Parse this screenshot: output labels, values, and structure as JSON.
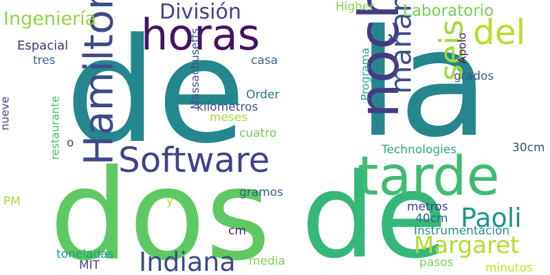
{
  "words": [
    {
      "text": "de",
      "color": "#23878d",
      "rotate": false
    },
    {
      "text": "la",
      "color": "#25868e",
      "rotate": false
    },
    {
      "text": "dos",
      "color": "#5ec962",
      "rotate": false
    },
    {
      "text": "de",
      "color": "#35b779",
      "rotate": false
    },
    {
      "text": "noche",
      "color": "#443b84",
      "rotate": true
    },
    {
      "text": "tarde",
      "color": "#3fbc73",
      "rotate": false
    },
    {
      "text": "horas",
      "color": "#471164",
      "rotate": false
    },
    {
      "text": "Hamilton",
      "color": "#3e4a89",
      "rotate": true
    },
    {
      "text": "Software",
      "color": "#404387",
      "rotate": false
    },
    {
      "text": "mañana",
      "color": "#3c4f8a",
      "rotate": true
    },
    {
      "text": "del",
      "color": "#b5de2b",
      "rotate": false
    },
    {
      "text": "seis",
      "color": "#a2da37",
      "rotate": true
    },
    {
      "text": "Indiana",
      "color": "#3e4989",
      "rotate": false
    },
    {
      "text": "Paoli",
      "color": "#1f958b",
      "rotate": false
    },
    {
      "text": "Margaret",
      "color": "#b2dd2d",
      "rotate": false
    },
    {
      "text": "División",
      "color": "#414287",
      "rotate": false
    },
    {
      "text": "Ingeniería",
      "color": "#8ed645",
      "rotate": false
    },
    {
      "text": "Laboratorio",
      "color": "#75d054",
      "rotate": false
    },
    {
      "text": "Higher",
      "color": "#86d549",
      "rotate": false
    },
    {
      "text": "Espacial",
      "color": "#46307e",
      "rotate": false
    },
    {
      "text": "tres",
      "color": "#34618d",
      "rotate": false
    },
    {
      "text": "casa",
      "color": "#34618d",
      "rotate": false
    },
    {
      "text": "Massachusetts",
      "color": "#3b528b",
      "rotate": true
    },
    {
      "text": "Order",
      "color": "#2c728e",
      "rotate": false
    },
    {
      "text": "kilometros",
      "color": "#3b528b",
      "rotate": false
    },
    {
      "text": "meses",
      "color": "#a5db36",
      "rotate": false
    },
    {
      "text": "cuatro",
      "color": "#6ccd5a",
      "rotate": false
    },
    {
      "text": "Programa",
      "color": "#21a685",
      "rotate": true
    },
    {
      "text": "Apolo",
      "color": "#471365",
      "rotate": true
    },
    {
      "text": "grados",
      "color": "#3b528b",
      "rotate": false
    },
    {
      "text": "restaurante",
      "color": "#4ac16d",
      "rotate": true
    },
    {
      "text": "nueve",
      "color": "#3f4788",
      "rotate": true
    },
    {
      "text": "o",
      "color": "#443b84",
      "rotate": false
    },
    {
      "text": "Technologies",
      "color": "#26ad81",
      "rotate": false
    },
    {
      "text": "30cm",
      "color": "#3b528b",
      "rotate": false
    },
    {
      "text": "PM",
      "color": "#a2da37",
      "rotate": false
    },
    {
      "text": "y",
      "color": "#b5de2b",
      "rotate": false
    },
    {
      "text": "gramos",
      "color": "#355f8d",
      "rotate": false
    },
    {
      "text": "metros",
      "color": "#433e85",
      "rotate": false
    },
    {
      "text": "40cm",
      "color": "#34618d",
      "rotate": false
    },
    {
      "text": "cm",
      "color": "#482475",
      "rotate": false
    },
    {
      "text": "Instrumentación",
      "color": "#21918c",
      "rotate": false
    },
    {
      "text": "toneladas",
      "color": "#1f9a8a",
      "rotate": false
    },
    {
      "text": "media",
      "color": "#7ad151",
      "rotate": false
    },
    {
      "text": "MIT",
      "color": "#414487",
      "rotate": false
    },
    {
      "text": "pasos",
      "color": "#7ad151",
      "rotate": false
    },
    {
      "text": "minutos",
      "color": "#c2df23",
      "rotate": false
    }
  ]
}
